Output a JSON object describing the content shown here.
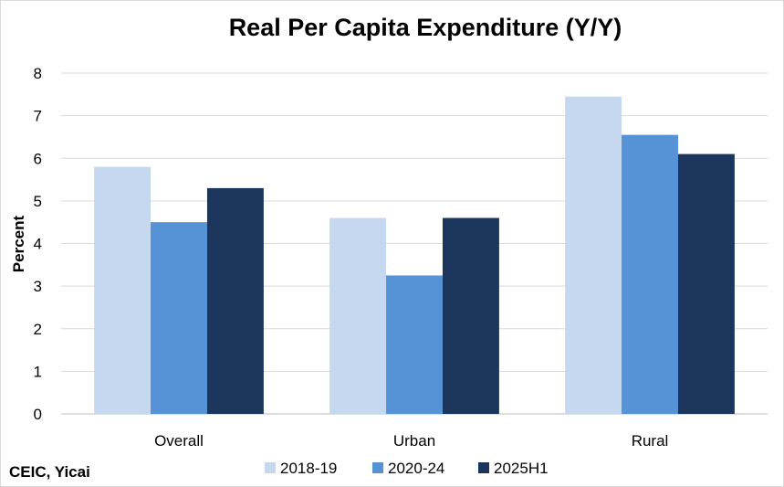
{
  "chart_data": {
    "type": "bar",
    "title": "Real Per Capita Expenditure (Y/Y)",
    "ylabel": "Percent",
    "xlabel": "",
    "ylim": [
      0,
      8
    ],
    "yticks": [
      0,
      1,
      2,
      3,
      4,
      5,
      6,
      7,
      8
    ],
    "grid": true,
    "legend_position": "bottom",
    "categories": [
      "Overall",
      "Urban",
      "Rural"
    ],
    "series": [
      {
        "name": "2018-19",
        "color": "#c5d8f0",
        "values": [
          5.8,
          4.6,
          7.45
        ]
      },
      {
        "name": "2020-24",
        "color": "#5592d6",
        "values": [
          4.5,
          3.25,
          6.55
        ]
      },
      {
        "name": "2025H1",
        "color": "#1b355d",
        "values": [
          5.3,
          4.6,
          6.1
        ]
      }
    ],
    "source": "CEIC, Yicai"
  }
}
